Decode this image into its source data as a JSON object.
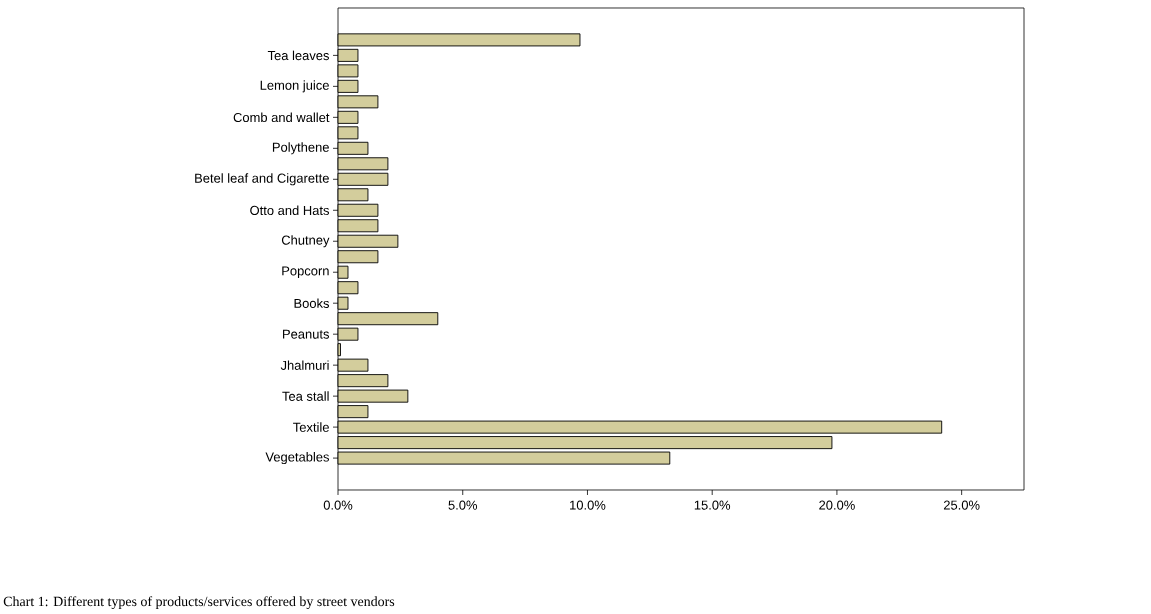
{
  "chart_data": {
    "type": "bar",
    "orientation": "horizontal",
    "categories": [
      null,
      "Tea leaves",
      null,
      "Lemon juice",
      null,
      "Comb and wallet",
      null,
      "Polythene",
      null,
      "Betel leaf and Cigarette",
      null,
      "Otto and Hats",
      null,
      "Chutney",
      null,
      "Popcorn",
      null,
      "Books",
      null,
      "Peanuts",
      null,
      "Jhalmuri",
      null,
      "Tea stall",
      null,
      "Textile",
      null,
      "Vegetables"
    ],
    "values": [
      9.7,
      0.8,
      0.8,
      0.8,
      1.6,
      0.8,
      0.8,
      1.2,
      2.0,
      2.0,
      1.2,
      1.6,
      1.6,
      2.4,
      1.6,
      0.4,
      0.8,
      0.4,
      4.0,
      0.8,
      0.1,
      1.2,
      2.0,
      2.8,
      1.2,
      24.2,
      19.8,
      13.3
    ],
    "color": "#d3cd9c",
    "xlim": [
      0,
      27.5
    ],
    "xticks": [
      {
        "value": 0,
        "label": "0.0%"
      },
      {
        "value": 5,
        "label": "5.0%"
      },
      {
        "value": 10,
        "label": "10.0%"
      },
      {
        "value": 15,
        "label": "15.0%"
      },
      {
        "value": 20,
        "label": "20.0%"
      },
      {
        "value": 25,
        "label": "25.0%"
      }
    ],
    "annotations": [
      "Chart 1: Different types of products/services offered by street vendors"
    ]
  }
}
